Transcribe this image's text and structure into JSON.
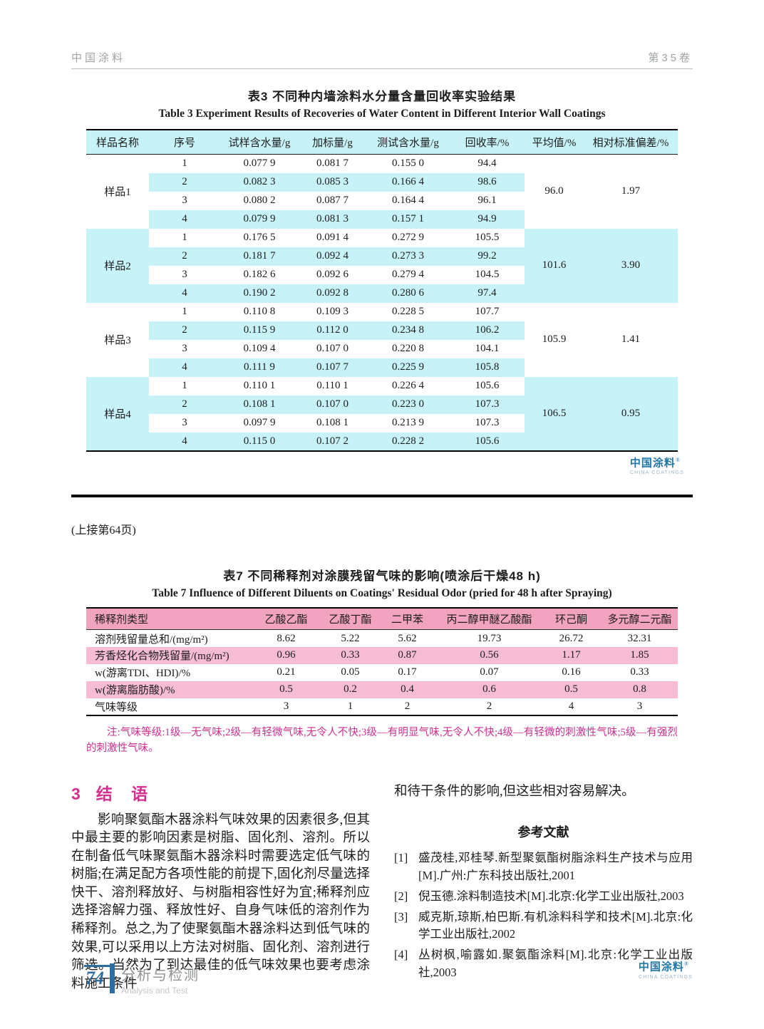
{
  "page_header": {
    "journal": "中国涂料",
    "volume": "第35卷"
  },
  "table3": {
    "title_zh": "表3  不同种内墙涂料水分量含量回收率实验结果",
    "title_en": "Table 3   Experiment Results of Recoveries of Water Content in Different Interior Wall Coatings",
    "headers": [
      "样品名称",
      "序号",
      "试样含水量/g",
      "加标量/g",
      "测试含水量/g",
      "回收率/%",
      "平均值/%",
      "相对标准偏差/%"
    ],
    "groups": [
      {
        "name": "样品1",
        "mean": "96.0",
        "rsd": "1.97",
        "rows": [
          [
            "1",
            "0.077 9",
            "0.081 7",
            "0.155 0",
            "94.4"
          ],
          [
            "2",
            "0.082 3",
            "0.085 3",
            "0.166 4",
            "98.6"
          ],
          [
            "3",
            "0.080 2",
            "0.087 7",
            "0.164 4",
            "96.1"
          ],
          [
            "4",
            "0.079 9",
            "0.081 3",
            "0.157 1",
            "94.9"
          ]
        ]
      },
      {
        "name": "样品2",
        "mean": "101.6",
        "rsd": "3.90",
        "rows": [
          [
            "1",
            "0.176 5",
            "0.091 4",
            "0.272 9",
            "105.5"
          ],
          [
            "2",
            "0.181 7",
            "0.092 4",
            "0.273 3",
            "99.2"
          ],
          [
            "3",
            "0.182 6",
            "0.092 6",
            "0.279 4",
            "104.5"
          ],
          [
            "4",
            "0.190 2",
            "0.092 8",
            "0.280 6",
            "97.4"
          ]
        ]
      },
      {
        "name": "样品3",
        "mean": "105.9",
        "rsd": "1.41",
        "rows": [
          [
            "1",
            "0.110 8",
            "0.109 3",
            "0.228 5",
            "107.7"
          ],
          [
            "2",
            "0.115 9",
            "0.112 0",
            "0.234 8",
            "106.2"
          ],
          [
            "3",
            "0.109 4",
            "0.107 0",
            "0.220 8",
            "104.1"
          ],
          [
            "4",
            "0.111 9",
            "0.107 7",
            "0.225 9",
            "105.8"
          ]
        ]
      },
      {
        "name": "样品4",
        "mean": "106.5",
        "rsd": "0.95",
        "rows": [
          [
            "1",
            "0.110 1",
            "0.110 1",
            "0.226 4",
            "105.6"
          ],
          [
            "2",
            "0.108 1",
            "0.107 0",
            "0.223 0",
            "107.3"
          ],
          [
            "3",
            "0.097 9",
            "0.108 1",
            "0.213 9",
            "107.3"
          ],
          [
            "4",
            "0.115 0",
            "0.107 2",
            "0.228 2",
            "105.6"
          ]
        ]
      }
    ]
  },
  "brand": {
    "logo_zh": "中国涂料",
    "logo_reg": "®",
    "logo_en": "CHINA COATINGS"
  },
  "continuation": "(上接第64页)",
  "table7": {
    "title_zh": "表7  不同稀释剂对涂膜残留气味的影响(喷涂后干燥48 h)",
    "title_en": "Table 7   Influence of Different Diluents on Coatings' Residual Odor (pried for 48 h after Spraying)",
    "headers": [
      "稀释剂类型",
      "乙酸乙酯",
      "乙酸丁酯",
      "二甲苯",
      "丙二醇甲醚乙酸酯",
      "环己酮",
      "多元醇二元酯"
    ],
    "rows": [
      {
        "label": "溶剂残留量总和/(mg/m²)",
        "values": [
          "8.62",
          "5.22",
          "5.62",
          "19.73",
          "26.72",
          "32.31"
        ]
      },
      {
        "label": "芳香烃化合物残留量/(mg/m²)",
        "values": [
          "0.96",
          "0.33",
          "0.87",
          "0.56",
          "1.17",
          "1.85"
        ]
      },
      {
        "label": "w(游离TDI、HDI)/%",
        "values": [
          "0.21",
          "0.05",
          "0.17",
          "0.07",
          "0.16",
          "0.33"
        ]
      },
      {
        "label": "w(游离脂肪酸)/%",
        "values": [
          "0.5",
          "0.2",
          "0.4",
          "0.6",
          "0.5",
          "0.8"
        ]
      },
      {
        "label": "气味等级",
        "values": [
          "3",
          "1",
          "2",
          "2",
          "4",
          "3"
        ]
      }
    ],
    "note": "注:气味等级:1级—无气味;2级—有轻微气味,无令人不快;3级—有明显气味,无令人不快;4级—有轻微的刺激性气味;5级—有强烈的刺激性气味。"
  },
  "conclusion": {
    "heading_no": "3",
    "heading_word": "结  语",
    "left_paragraph": "影响聚氨酯木器涂料气味效果的因素很多,但其中最主要的影响因素是树脂、固化剂、溶剂。所以在制备低气味聚氨酯木器涂料时需要选定低气味的树脂;在满足配方各项性能的前提下,固化剂尽量选择快干、溶剂释放好、与树脂相容性好为宜;稀释剂应选择溶解力强、释放性好、自身气味低的溶剂作为稀释剂。总之,为了使聚氨酯木器涂料达到低气味的效果,可以采用以上方法对树脂、固化剂、溶剂进行筛选。当然为了到达最佳的低气味效果也要考虑涂料施工条件",
    "right_paragraph": "和待干条件的影响,但这些相对容易解决。"
  },
  "references": {
    "heading": "参考文献",
    "items": [
      {
        "marker": "[1]",
        "text": "盛茂桂,邓桂琴.新型聚氨酯树脂涂料生产技术与应用[M].广州:广东科技出版社,2001"
      },
      {
        "marker": "[2]",
        "text": "倪玉德.涂料制造技术[M].北京:化学工业出版社,2003"
      },
      {
        "marker": "[3]",
        "text": "威克斯,琼斯,柏巴斯.有机涂料科学和技术[M].北京:化学工业出版社,2002"
      },
      {
        "marker": "[4]",
        "text": "丛树枫,喻露如.聚氨酯涂料[M].北京:化学工业出版社,2003"
      }
    ]
  },
  "page_footer": {
    "page_number": "74",
    "section_zh": "分析与检测",
    "section_en": "Analysis and Test"
  },
  "colors": {
    "cyan": "#c7f2f8",
    "pink_header": "#f2a3c0",
    "pink_stripe": "#f6bcd4",
    "magenta": "#c9308f",
    "brand_blue": "#2176a8"
  }
}
